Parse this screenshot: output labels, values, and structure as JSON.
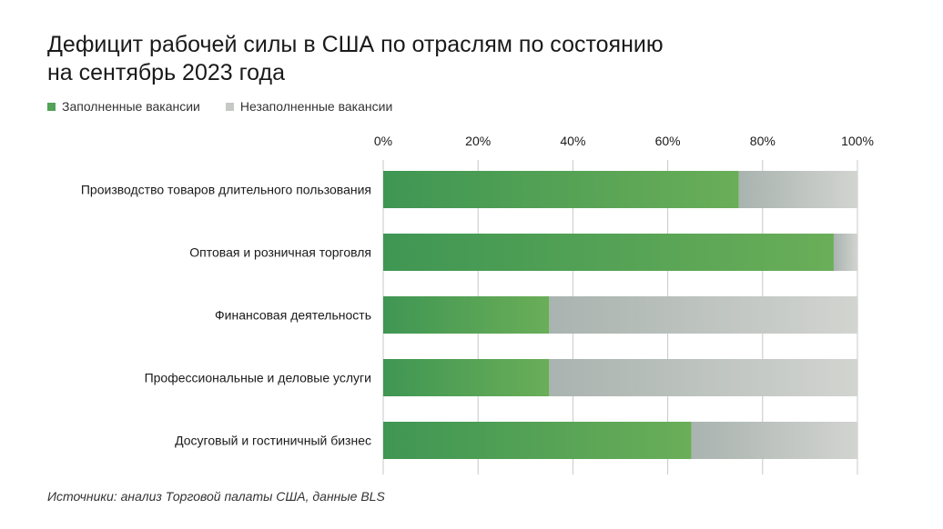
{
  "title_line1": "Дефицит рабочей силы в США по отраслям по состоянию",
  "title_line2": "на сентябрь 2023 года",
  "legend": {
    "filled": "Заполненные вакансии",
    "unfilled": "Незаполненные вакансии"
  },
  "source": "Источники: анализ Торговой палаты США, данные BLS",
  "colors": {
    "filled_start": "#3f9653",
    "filled_end": "#6aae58",
    "unfilled_start": "#a9b3af",
    "unfilled_end": "#d2d4d0",
    "grid": "#c8c8c8"
  },
  "chart_data": {
    "type": "bar",
    "orientation": "horizontal",
    "stacked": true,
    "categories": [
      "Производство товаров длительного пользования",
      "Оптовая и розничная торговля",
      "Финансовая деятельность",
      "Профессиональные и деловые услуги",
      "Досуговый и гостиничный бизнес"
    ],
    "series": [
      {
        "name": "Заполненные вакансии",
        "values": [
          75,
          95,
          35,
          35,
          65
        ]
      },
      {
        "name": "Незаполненные вакансии",
        "values": [
          25,
          5,
          65,
          65,
          35
        ]
      }
    ],
    "xlim": [
      0,
      100
    ],
    "xticks": [
      "0%",
      "20%",
      "40%",
      "60%",
      "80%",
      "100%"
    ],
    "grid": true,
    "axis_position": "top",
    "legend_position": "top-left"
  }
}
